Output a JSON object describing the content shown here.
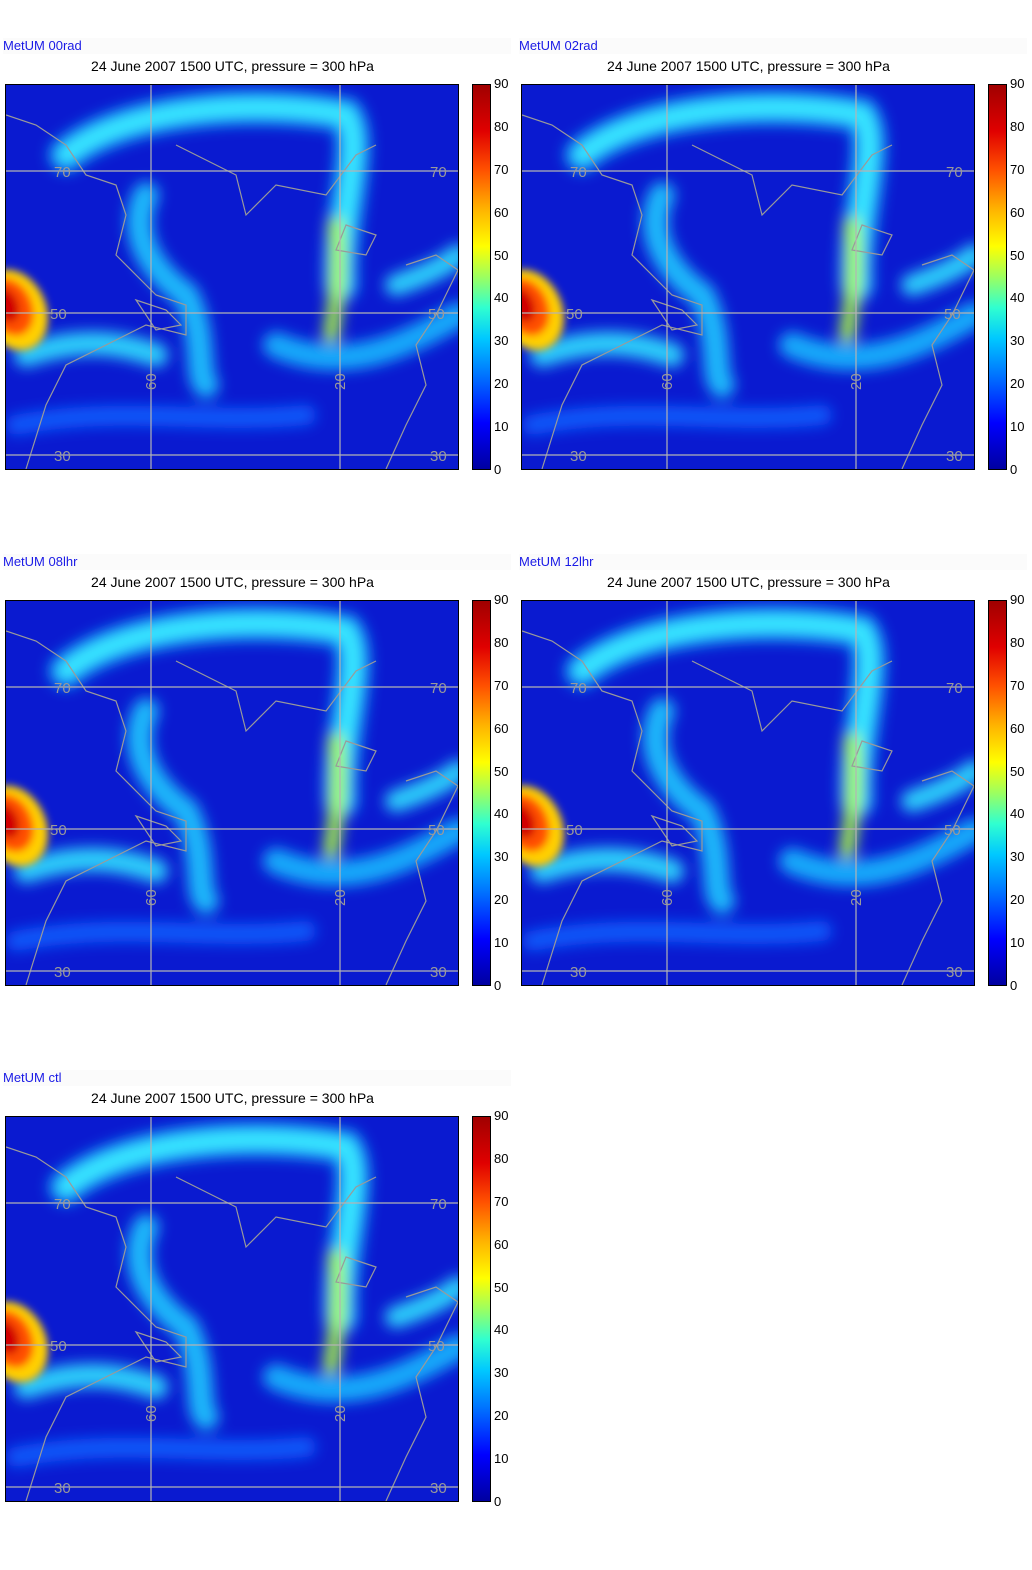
{
  "panels": [
    {
      "label": "MetUM 00rad",
      "title": "24 June 2007 1500 UTC, pressure = 300 hPa"
    },
    {
      "label": "MetUM 02rad",
      "title": "24 June 2007 1500 UTC, pressure = 300 hPa"
    },
    {
      "label": "MetUM 08lhr",
      "title": "24 June 2007 1500 UTC, pressure = 300 hPa"
    },
    {
      "label": "MetUM 12lhr",
      "title": "24 June 2007 1500 UTC, pressure = 300 hPa"
    },
    {
      "label": "MetUM ctl",
      "title": "24 June 2007 1500 UTC, pressure = 300 hPa"
    }
  ],
  "colorbar": {
    "ticks": [
      "90",
      "80",
      "70",
      "60",
      "50",
      "40",
      "30",
      "20",
      "10",
      "0"
    ],
    "range": [
      0,
      90
    ]
  },
  "grid_labels": {
    "lat": [
      "70",
      "70",
      "50",
      "50",
      "30",
      "30"
    ],
    "lon": [
      "60",
      "20"
    ]
  },
  "colors": {
    "background_field": "#0a1ad0",
    "jet_core": "#30e0ff",
    "jet_max": "#ff3000",
    "coastline": "#9a9a9a",
    "label_blue": "#1a1ae6"
  }
}
